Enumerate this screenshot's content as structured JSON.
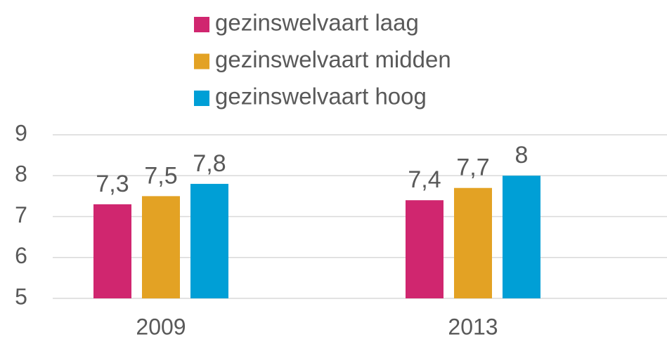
{
  "chart_data": {
    "type": "bar",
    "categories": [
      "2009",
      "2013"
    ],
    "series": [
      {
        "name": "gezinswelvaart laag",
        "color": "#d0266f",
        "values": [
          7.3,
          7.4
        ],
        "value_labels": [
          "7,3",
          "7,4"
        ]
      },
      {
        "name": "gezinswelvaart midden",
        "color": "#e3a224",
        "values": [
          7.5,
          7.7
        ],
        "value_labels": [
          "7,5",
          "7,7"
        ]
      },
      {
        "name": "gezinswelvaart hoog",
        "color": "#009fd6",
        "values": [
          7.8,
          8
        ],
        "value_labels": [
          "7,8",
          "8"
        ]
      }
    ],
    "ylim": [
      5,
      9
    ],
    "yticks": [
      5,
      6,
      7,
      8,
      9
    ],
    "grid": true,
    "legend": "top"
  }
}
